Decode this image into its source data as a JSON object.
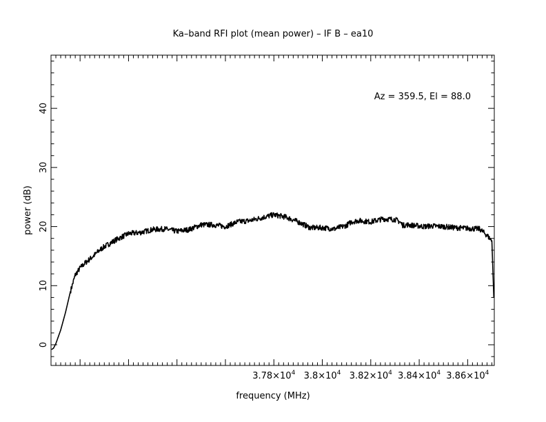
{
  "chart_data": {
    "type": "line",
    "title": "Ka–band RFI plot (mean power) – IF B – ea10",
    "xlabel": "frequency (MHz)",
    "ylabel": "power (dB)",
    "annotation": "Az = 359.5, El = 88.0",
    "xlim": [
      36880,
      38710
    ],
    "ylim": [
      -3.5,
      49
    ],
    "grid": false,
    "x_major_ticks": [
      37800,
      38000,
      38200,
      38400,
      38600
    ],
    "x_tick_labels": [
      {
        "mantissa": "3.78×10",
        "exp": "4"
      },
      {
        "mantissa": "3.8×10",
        "exp": "4"
      },
      {
        "mantissa": "3.82×10",
        "exp": "4"
      },
      {
        "mantissa": "3.84×10",
        "exp": "4"
      },
      {
        "mantissa": "3.86×10",
        "exp": "4"
      }
    ],
    "y_major_ticks": [
      0,
      10,
      20,
      30,
      40
    ],
    "y_tick_labels": [
      "0",
      "10",
      "20",
      "30",
      "40"
    ],
    "series": [
      {
        "color": "#000000",
        "x": [
          36882,
          36890,
          36900,
          36920,
          36940,
          36960,
          36980,
          37000,
          37020,
          37040,
          37060,
          37080,
          37100,
          37150,
          37200,
          37250,
          37300,
          37350,
          37400,
          37450,
          37500,
          37550,
          37600,
          37650,
          37700,
          37750,
          37800,
          37850,
          37900,
          37950,
          38000,
          38050,
          38100,
          38120,
          38150,
          38200,
          38250,
          38300,
          38320,
          38333,
          38350,
          38400,
          38420,
          38450,
          38500,
          38550,
          38600,
          38650,
          38680,
          38700,
          38708
        ],
        "y": [
          -0.8,
          -0.6,
          0.2,
          2.5,
          5.5,
          9.0,
          11.8,
          13.0,
          13.8,
          14.5,
          15.2,
          16.0,
          16.6,
          17.8,
          18.8,
          19.0,
          19.5,
          19.6,
          19.2,
          19.5,
          20.3,
          20.3,
          20.0,
          20.8,
          21.0,
          21.5,
          22.0,
          21.6,
          20.8,
          19.8,
          19.8,
          19.6,
          20.2,
          20.8,
          21.0,
          20.8,
          21.3,
          21.2,
          20.8,
          20.2,
          20.3,
          20.1,
          20.0,
          20.1,
          20.0,
          19.8,
          19.7,
          19.6,
          18.5,
          17.6,
          8.0
        ]
      }
    ]
  }
}
